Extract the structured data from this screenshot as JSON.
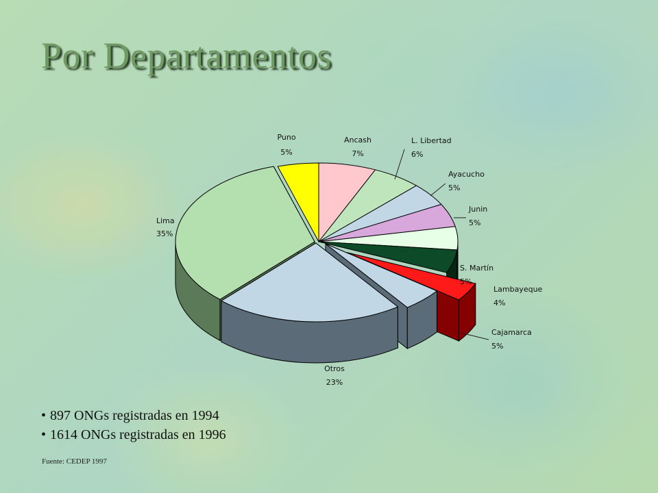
{
  "slide": {
    "title": "Por Departamentos",
    "notes": [
      "897 ONGs registradas en 1994",
      "1614 ONGs registradas en 1996"
    ],
    "source": "Fuente: CEDEP 1997"
  },
  "chart_data": {
    "type": "pie",
    "three_d": true,
    "slices": [
      {
        "label": "Ancash",
        "value": 7,
        "value_label": "7%",
        "color": "#ffc8cc",
        "side_color": "#b08c8f"
      },
      {
        "label": "L. Libertad",
        "value": 6,
        "value_label": "6%",
        "color": "#bfe5bc",
        "side_color": "#6f8a6c"
      },
      {
        "label": "Ayacucho",
        "value": 5,
        "value_label": "5%",
        "color": "#c1d7e6",
        "side_color": "#6f8090"
      },
      {
        "label": "Junin",
        "value": 5,
        "value_label": "5%",
        "color": "#d8a8dc",
        "side_color": "#806084"
      },
      {
        "label": "",
        "value": 5,
        "value_label": "",
        "color": "#e6ffe6",
        "side_color": "#889a88"
      },
      {
        "label": "S. Martín",
        "value": 5,
        "value_label": "5%",
        "color": "#0c4a28",
        "side_color": "#052613"
      },
      {
        "label": "Lambayeque",
        "value": 4,
        "value_label": "4%",
        "color": "#ff1a1a",
        "side_color": "#850000",
        "exploded": true
      },
      {
        "label": "Cajamarca",
        "value": 5,
        "value_label": "5%",
        "color": "#c1d7e6",
        "side_color": "#5c6b78",
        "exploded": true
      },
      {
        "label": "Otros",
        "value": 23,
        "value_label": "23%",
        "color": "#c1d7e6",
        "side_color": "#5c6b78",
        "exploded": true
      },
      {
        "label": "Lima",
        "value": 35,
        "value_label": "35%",
        "color": "#b4e0b0",
        "side_color": "#5a7a58",
        "exploded": true
      },
      {
        "label": "Puno",
        "value": 5,
        "value_label": "5%",
        "color": "#ffff00",
        "side_color": "#8a8a00"
      }
    ]
  }
}
